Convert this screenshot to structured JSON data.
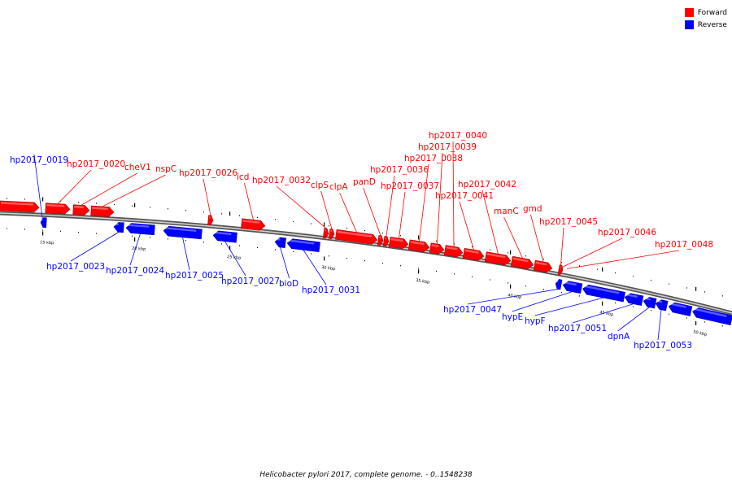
{
  "legend": {
    "forward": {
      "label": "Forward",
      "color": "#ff0000"
    },
    "reverse": {
      "label": "Reverse",
      "color": "#0000ff"
    }
  },
  "caption": "Helicobacter pylori 2017, complete genome. - 0..1548238",
  "scale_labels": [
    "15 kbp",
    "20 kbp",
    "25 kbp",
    "30 kbp",
    "35 kbp",
    "40 kbp",
    "45 kbp",
    "50 kbp"
  ],
  "genes": {
    "forward": [
      "hp2017_0020",
      "cheV1",
      "nspC",
      "hp2017_0026",
      "icd",
      "hp2017_0032",
      "clpS",
      "clpA",
      "panD",
      "hp2017_0036",
      "hp2017_0037",
      "hp2017_0038",
      "hp2017_0039",
      "hp2017_0040",
      "hp2017_0041",
      "hp2017_0042",
      "manC",
      "gmd",
      "hp2017_0045",
      "hp2017_0046",
      "hp2017_0048"
    ],
    "reverse": [
      "hp2017_0019",
      "hp2017_0023",
      "hp2017_0024",
      "hp2017_0025",
      "hp2017_0027",
      "bioD",
      "hp2017_0031",
      "hp2017_0047",
      "hypE",
      "hypF",
      "hp2017_0051",
      "dpnA",
      "hp2017_0053"
    ]
  }
}
